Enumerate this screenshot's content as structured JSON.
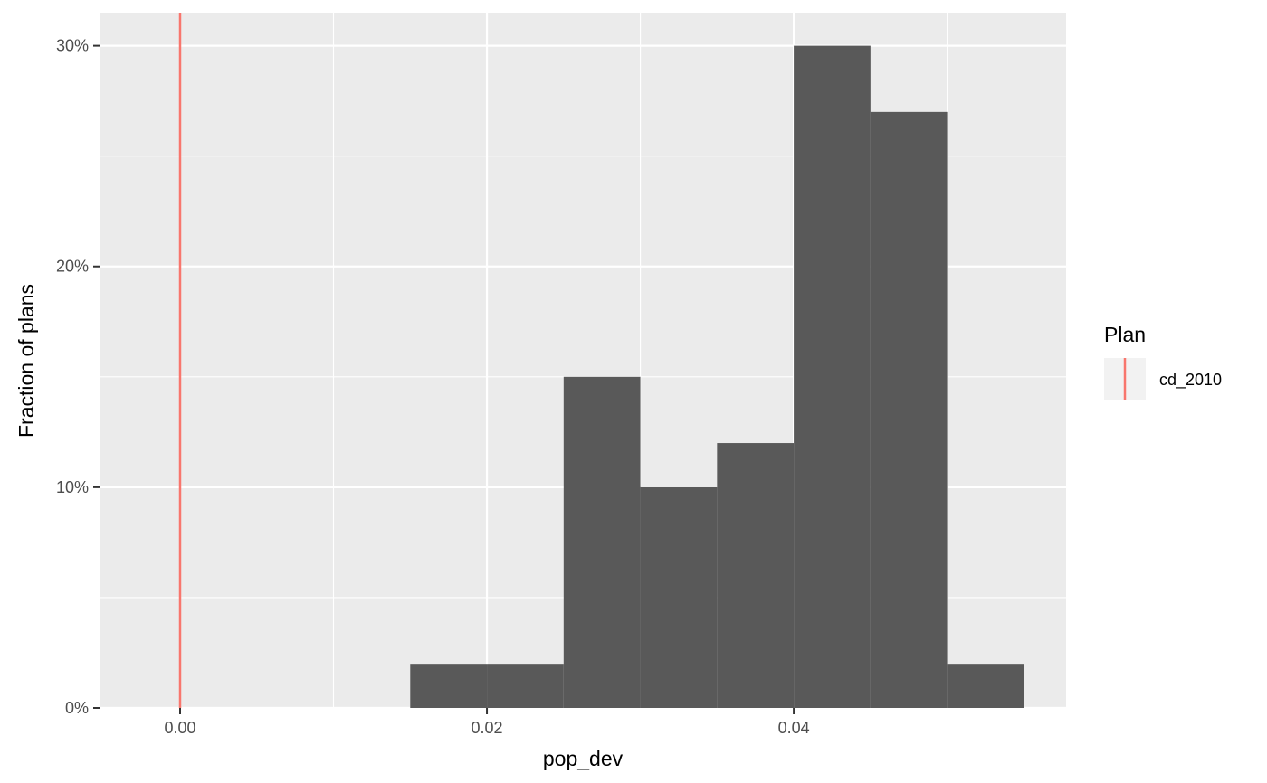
{
  "chart_data": {
    "type": "bar",
    "title": "",
    "xlabel": "pop_dev",
    "ylabel": "Fraction of plans",
    "xlim": [
      -0.00525,
      0.05775
    ],
    "ylim": [
      0,
      0.3
    ],
    "x_ticks": [
      0.0,
      0.02,
      0.04
    ],
    "x_tick_labels": [
      "0.00",
      "0.02",
      "0.04"
    ],
    "x_minor_ticks": [
      0.01,
      0.03,
      0.05
    ],
    "y_ticks": [
      0,
      0.1,
      0.2,
      0.3
    ],
    "y_tick_labels": [
      "0%",
      "10%",
      "20%",
      "30%"
    ],
    "y_minor_ticks": [
      0.05,
      0.15,
      0.25
    ],
    "bin_width": 0.005,
    "bins": [
      {
        "x0": 0.015,
        "x1": 0.02,
        "value": 0.02
      },
      {
        "x0": 0.02,
        "x1": 0.025,
        "value": 0.02
      },
      {
        "x0": 0.025,
        "x1": 0.03,
        "value": 0.15
      },
      {
        "x0": 0.03,
        "x1": 0.035,
        "value": 0.1
      },
      {
        "x0": 0.035,
        "x1": 0.04,
        "value": 0.12
      },
      {
        "x0": 0.04,
        "x1": 0.045,
        "value": 0.3
      },
      {
        "x0": 0.045,
        "x1": 0.05,
        "value": 0.27
      },
      {
        "x0": 0.05,
        "x1": 0.055,
        "value": 0.02
      }
    ],
    "reference_lines": [
      {
        "x": 0.0,
        "name": "cd_2010",
        "color": "#F8766D"
      }
    ],
    "legend": {
      "title": "Plan",
      "entries": [
        {
          "label": "cd_2010",
          "color": "#F8766D"
        }
      ],
      "position": "right"
    },
    "colors": {
      "panel_background": "#EBEBEB",
      "grid": "#FFFFFF",
      "bar_fill": "#595959",
      "legend_key_background": "#F2F2F2"
    },
    "grid": true
  }
}
